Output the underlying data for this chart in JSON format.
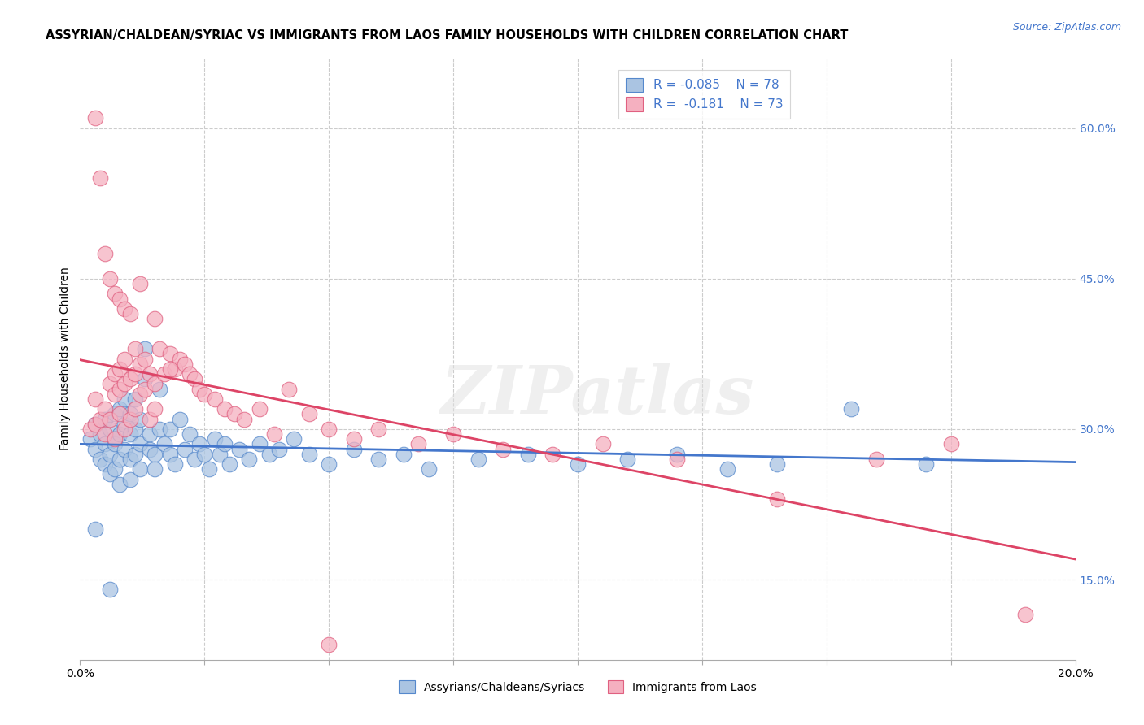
{
  "title": "ASSYRIAN/CHALDEAN/SYRIAC VS IMMIGRANTS FROM LAOS FAMILY HOUSEHOLDS WITH CHILDREN CORRELATION CHART",
  "source": "Source: ZipAtlas.com",
  "ylabel": "Family Households with Children",
  "ytick_labels": [
    "15.0%",
    "30.0%",
    "45.0%",
    "60.0%"
  ],
  "ytick_values": [
    0.15,
    0.3,
    0.45,
    0.6
  ],
  "xlim": [
    0.0,
    0.2
  ],
  "ylim": [
    0.07,
    0.67
  ],
  "legend_blue_R": "R = -0.085",
  "legend_blue_N": "N = 78",
  "legend_pink_R": "R =  -0.181",
  "legend_pink_N": "N = 73",
  "legend_label_blue": "Assyrians/Chaldeans/Syriacs",
  "legend_label_pink": "Immigrants from Laos",
  "blue_fill": "#aac4e2",
  "blue_edge": "#5588cc",
  "pink_fill": "#f5b0c0",
  "pink_edge": "#e06080",
  "blue_line": "#4477cc",
  "pink_line": "#dd4466",
  "background_color": "#ffffff",
  "grid_color": "#cccccc",
  "blue_scatter_x": [
    0.002,
    0.003,
    0.003,
    0.004,
    0.004,
    0.005,
    0.005,
    0.005,
    0.006,
    0.006,
    0.006,
    0.007,
    0.007,
    0.007,
    0.007,
    0.008,
    0.008,
    0.008,
    0.008,
    0.009,
    0.009,
    0.009,
    0.01,
    0.01,
    0.01,
    0.01,
    0.011,
    0.011,
    0.011,
    0.012,
    0.012,
    0.012,
    0.013,
    0.013,
    0.014,
    0.014,
    0.015,
    0.015,
    0.016,
    0.016,
    0.017,
    0.018,
    0.018,
    0.019,
    0.02,
    0.021,
    0.022,
    0.023,
    0.024,
    0.025,
    0.026,
    0.027,
    0.028,
    0.029,
    0.03,
    0.032,
    0.034,
    0.036,
    0.038,
    0.04,
    0.043,
    0.046,
    0.05,
    0.055,
    0.06,
    0.065,
    0.07,
    0.08,
    0.09,
    0.1,
    0.11,
    0.12,
    0.13,
    0.14,
    0.155,
    0.17,
    0.003,
    0.006
  ],
  "blue_scatter_y": [
    0.29,
    0.28,
    0.305,
    0.27,
    0.295,
    0.265,
    0.285,
    0.31,
    0.275,
    0.3,
    0.255,
    0.29,
    0.315,
    0.285,
    0.26,
    0.32,
    0.295,
    0.27,
    0.245,
    0.305,
    0.28,
    0.33,
    0.295,
    0.315,
    0.27,
    0.25,
    0.3,
    0.275,
    0.33,
    0.285,
    0.31,
    0.26,
    0.38,
    0.35,
    0.28,
    0.295,
    0.275,
    0.26,
    0.3,
    0.34,
    0.285,
    0.275,
    0.3,
    0.265,
    0.31,
    0.28,
    0.295,
    0.27,
    0.285,
    0.275,
    0.26,
    0.29,
    0.275,
    0.285,
    0.265,
    0.28,
    0.27,
    0.285,
    0.275,
    0.28,
    0.29,
    0.275,
    0.265,
    0.28,
    0.27,
    0.275,
    0.26,
    0.27,
    0.275,
    0.265,
    0.27,
    0.275,
    0.26,
    0.265,
    0.32,
    0.265,
    0.2,
    0.14
  ],
  "pink_scatter_x": [
    0.002,
    0.003,
    0.003,
    0.004,
    0.005,
    0.005,
    0.006,
    0.006,
    0.007,
    0.007,
    0.007,
    0.008,
    0.008,
    0.008,
    0.009,
    0.009,
    0.009,
    0.01,
    0.01,
    0.011,
    0.011,
    0.011,
    0.012,
    0.012,
    0.013,
    0.013,
    0.014,
    0.014,
    0.015,
    0.015,
    0.016,
    0.017,
    0.018,
    0.019,
    0.02,
    0.021,
    0.022,
    0.023,
    0.024,
    0.025,
    0.027,
    0.029,
    0.031,
    0.033,
    0.036,
    0.039,
    0.042,
    0.046,
    0.05,
    0.055,
    0.06,
    0.068,
    0.075,
    0.085,
    0.095,
    0.105,
    0.12,
    0.14,
    0.16,
    0.175,
    0.003,
    0.004,
    0.005,
    0.006,
    0.007,
    0.008,
    0.009,
    0.01,
    0.012,
    0.015,
    0.018,
    0.19,
    0.05
  ],
  "pink_scatter_y": [
    0.3,
    0.305,
    0.33,
    0.31,
    0.32,
    0.295,
    0.345,
    0.31,
    0.355,
    0.335,
    0.29,
    0.36,
    0.34,
    0.315,
    0.37,
    0.345,
    0.3,
    0.35,
    0.31,
    0.38,
    0.355,
    0.32,
    0.365,
    0.335,
    0.37,
    0.34,
    0.355,
    0.31,
    0.345,
    0.32,
    0.38,
    0.355,
    0.375,
    0.36,
    0.37,
    0.365,
    0.355,
    0.35,
    0.34,
    0.335,
    0.33,
    0.32,
    0.315,
    0.31,
    0.32,
    0.295,
    0.34,
    0.315,
    0.3,
    0.29,
    0.3,
    0.285,
    0.295,
    0.28,
    0.275,
    0.285,
    0.27,
    0.23,
    0.27,
    0.285,
    0.61,
    0.55,
    0.475,
    0.45,
    0.435,
    0.43,
    0.42,
    0.415,
    0.445,
    0.41,
    0.36,
    0.115,
    0.085
  ],
  "watermark": "ZIPatlas"
}
